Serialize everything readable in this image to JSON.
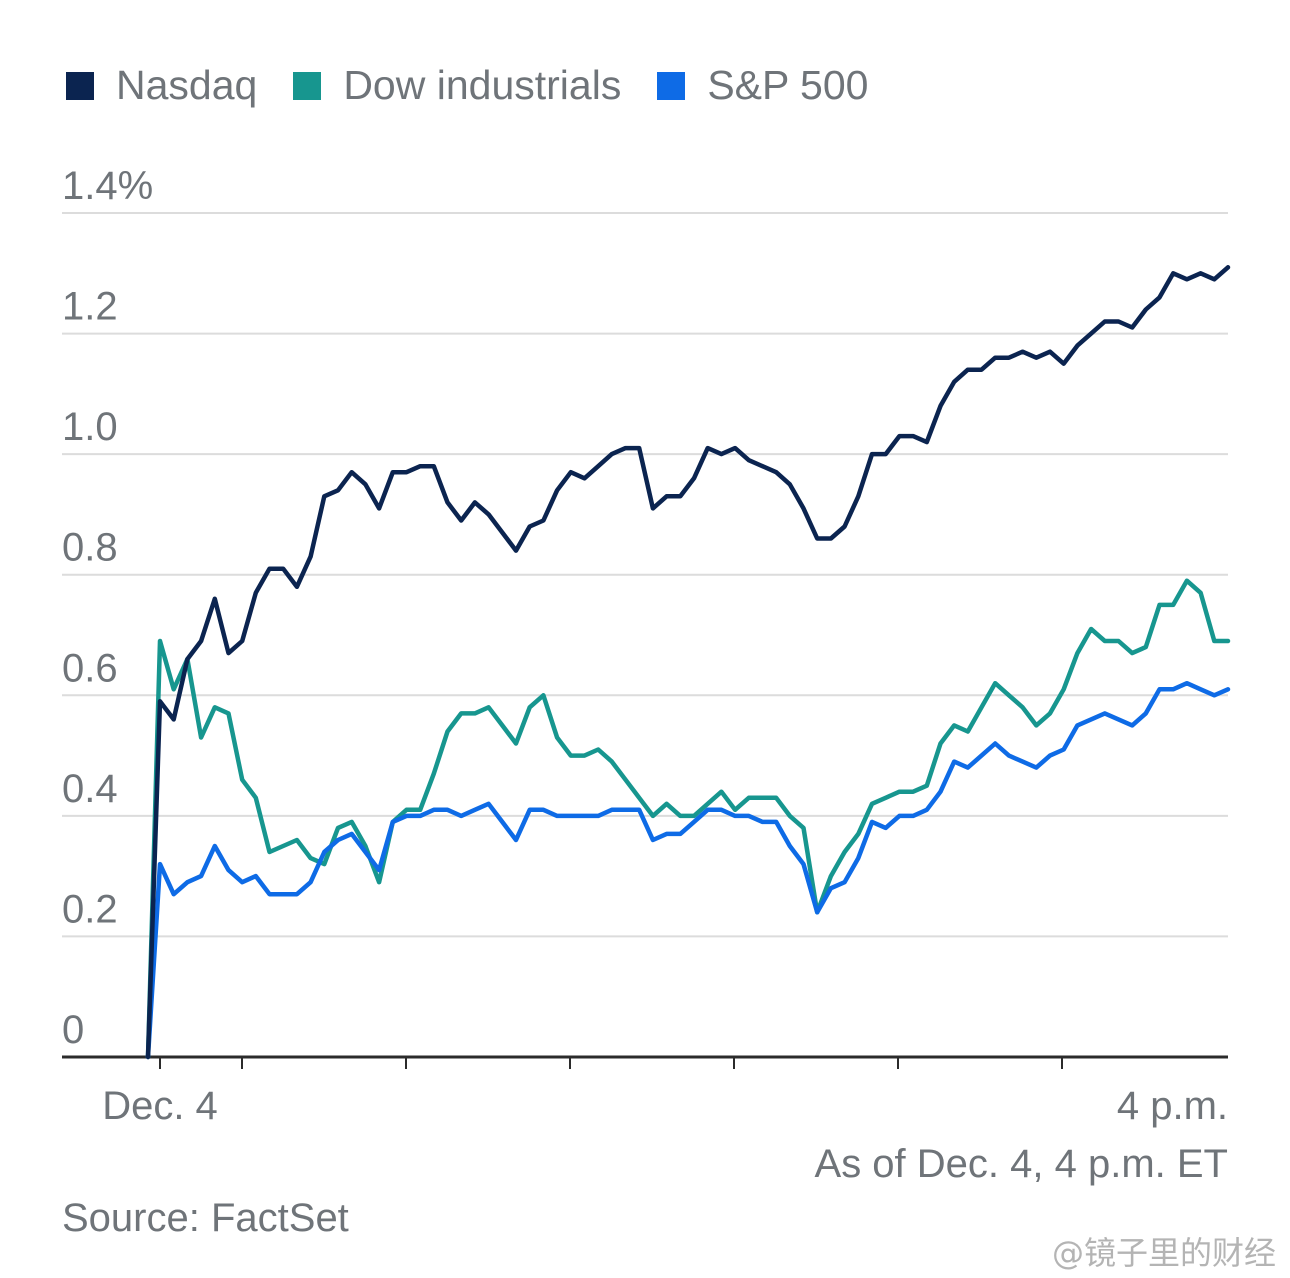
{
  "legend": [
    {
      "label": "Nasdaq",
      "color": "#0b2450"
    },
    {
      "label": "Dow industrials",
      "color": "#17968f"
    },
    {
      "label": "S&P 500",
      "color": "#0e6be6"
    }
  ],
  "footnote": "As of Dec. 4, 4 p.m. ET",
  "source": "Source: FactSet",
  "watermark": "@镜子里的财经",
  "chart_data": {
    "type": "line",
    "title": "",
    "xlabel": "",
    "ylabel": "",
    "ylim": [
      0,
      1.4
    ],
    "yticks": [
      0,
      0.2,
      0.4,
      0.6,
      0.8,
      1.0,
      1.2,
      1.4
    ],
    "ytick_labels": [
      "0",
      "0.2",
      "0.4",
      "0.6",
      "0.8",
      "1.0",
      "1.2",
      "1.4%"
    ],
    "xtick_labels": [
      "Dec. 4",
      "4 p.m."
    ],
    "grid": true,
    "legend_position": "top-left",
    "series": [
      {
        "name": "Nasdaq",
        "color": "#0b2450",
        "values": [
          0.0,
          0.59,
          0.56,
          0.66,
          0.69,
          0.76,
          0.67,
          0.69,
          0.77,
          0.81,
          0.81,
          0.78,
          0.83,
          0.93,
          0.94,
          0.97,
          0.95,
          0.91,
          0.97,
          0.97,
          0.98,
          0.98,
          0.92,
          0.89,
          0.92,
          0.9,
          0.87,
          0.84,
          0.88,
          0.89,
          0.94,
          0.97,
          0.96,
          0.98,
          1.0,
          1.01,
          1.01,
          0.91,
          0.93,
          0.93,
          0.96,
          1.01,
          1.0,
          1.01,
          0.99,
          0.98,
          0.97,
          0.95,
          0.91,
          0.86,
          0.86,
          0.88,
          0.93,
          1.0,
          1.0,
          1.03,
          1.03,
          1.02,
          1.08,
          1.12,
          1.14,
          1.14,
          1.16,
          1.16,
          1.17,
          1.16,
          1.17,
          1.15,
          1.18,
          1.2,
          1.22,
          1.22,
          1.21,
          1.24,
          1.26,
          1.3,
          1.29,
          1.3,
          1.29,
          1.31
        ]
      },
      {
        "name": "Dow industrials",
        "color": "#17968f",
        "values": [
          0.0,
          0.69,
          0.61,
          0.66,
          0.53,
          0.58,
          0.57,
          0.46,
          0.43,
          0.34,
          0.35,
          0.36,
          0.33,
          0.32,
          0.38,
          0.39,
          0.35,
          0.29,
          0.39,
          0.41,
          0.41,
          0.47,
          0.54,
          0.57,
          0.57,
          0.58,
          0.55,
          0.52,
          0.58,
          0.6,
          0.53,
          0.5,
          0.5,
          0.51,
          0.49,
          0.46,
          0.43,
          0.4,
          0.42,
          0.4,
          0.4,
          0.42,
          0.44,
          0.41,
          0.43,
          0.43,
          0.43,
          0.4,
          0.38,
          0.24,
          0.3,
          0.34,
          0.37,
          0.42,
          0.43,
          0.44,
          0.44,
          0.45,
          0.52,
          0.55,
          0.54,
          0.58,
          0.62,
          0.6,
          0.58,
          0.55,
          0.57,
          0.61,
          0.67,
          0.71,
          0.69,
          0.69,
          0.67,
          0.68,
          0.75,
          0.75,
          0.79,
          0.77,
          0.69,
          0.69
        ]
      },
      {
        "name": "S&P 500",
        "color": "#0e6be6",
        "values": [
          0.0,
          0.32,
          0.27,
          0.29,
          0.3,
          0.35,
          0.31,
          0.29,
          0.3,
          0.27,
          0.27,
          0.27,
          0.29,
          0.34,
          0.36,
          0.37,
          0.34,
          0.31,
          0.39,
          0.4,
          0.4,
          0.41,
          0.41,
          0.4,
          0.41,
          0.42,
          0.39,
          0.36,
          0.41,
          0.41,
          0.4,
          0.4,
          0.4,
          0.4,
          0.41,
          0.41,
          0.41,
          0.36,
          0.37,
          0.37,
          0.39,
          0.41,
          0.41,
          0.4,
          0.4,
          0.39,
          0.39,
          0.35,
          0.32,
          0.24,
          0.28,
          0.29,
          0.33,
          0.39,
          0.38,
          0.4,
          0.4,
          0.41,
          0.44,
          0.49,
          0.48,
          0.5,
          0.52,
          0.5,
          0.49,
          0.48,
          0.5,
          0.51,
          0.55,
          0.56,
          0.57,
          0.56,
          0.55,
          0.57,
          0.61,
          0.61,
          0.62,
          0.61,
          0.6,
          0.61
        ]
      }
    ]
  }
}
